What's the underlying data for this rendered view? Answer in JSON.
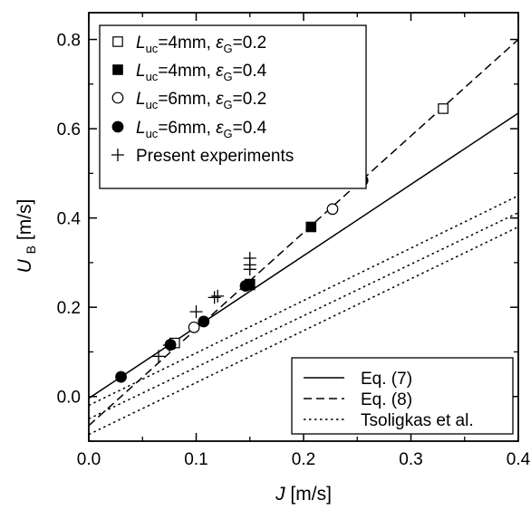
{
  "chart_data": {
    "type": "scatter",
    "x_axis": {
      "label": "J",
      "unit": "[m/s]",
      "lim": [
        0.0,
        0.4
      ],
      "ticks": [
        "0.0",
        "0.1",
        "0.2",
        "0.3",
        "0.4"
      ],
      "tick_values": [
        0.0,
        0.1,
        0.2,
        0.3,
        0.4
      ]
    },
    "y_axis": {
      "label": "U",
      "label_sub": "B",
      "unit": "[m/s]",
      "lim": [
        -0.1,
        0.86
      ],
      "ticks": [
        "0.0",
        "0.2",
        "0.4",
        "0.6",
        "0.8"
      ],
      "tick_values": [
        0.0,
        0.2,
        0.4,
        0.6,
        0.8
      ]
    },
    "grid": false,
    "series": [
      {
        "name": "L_uc=4mm, εG=0.2",
        "legend": {
          "l": "L",
          "l_sub": "uc",
          "mid": "=4mm, ",
          "eps": "ε",
          "eps_sub": "G",
          "tail": "=0.2"
        },
        "marker": "open-square",
        "points": [
          [
            0.08,
            0.12
          ],
          [
            0.15,
            0.25
          ],
          [
            0.33,
            0.645
          ]
        ]
      },
      {
        "name": "L_uc=4mm, εG=0.4",
        "legend": {
          "l": "L",
          "l_sub": "uc",
          "mid": "=4mm, ",
          "eps": "ε",
          "eps_sub": "G",
          "tail": "=0.4"
        },
        "marker": "filled-square",
        "points": [
          [
            0.15,
            0.252
          ],
          [
            0.207,
            0.38
          ]
        ]
      },
      {
        "name": "L_uc=6mm, εG=0.2",
        "legend": {
          "l": "L",
          "l_sub": "uc",
          "mid": "=6mm, ",
          "eps": "ε",
          "eps_sub": "G",
          "tail": "=0.2"
        },
        "marker": "open-circle",
        "points": [
          [
            0.098,
            0.155
          ],
          [
            0.227,
            0.42
          ]
        ]
      },
      {
        "name": "L_uc=6mm, εG=0.4",
        "legend": {
          "l": "L",
          "l_sub": "uc",
          "mid": "=6mm, ",
          "eps": "ε",
          "eps_sub": "G",
          "tail": "=0.4"
        },
        "marker": "filled-circle",
        "points": [
          [
            0.03,
            0.044
          ],
          [
            0.076,
            0.116
          ],
          [
            0.107,
            0.168
          ],
          [
            0.146,
            0.248
          ],
          [
            0.255,
            0.484
          ]
        ]
      },
      {
        "name": "Present experiments",
        "legend": {
          "plain": "Present experiments"
        },
        "marker": "plus",
        "points": [
          [
            0.065,
            0.09
          ],
          [
            0.075,
            0.115
          ],
          [
            0.1,
            0.19
          ],
          [
            0.117,
            0.222
          ],
          [
            0.12,
            0.225
          ],
          [
            0.15,
            0.285
          ],
          [
            0.15,
            0.31
          ],
          [
            0.15,
            0.295
          ]
        ]
      }
    ],
    "lines": [
      {
        "name": "Eq. (7)",
        "style": "solid",
        "segments": [
          [
            [
              0.0,
              -0.004
            ],
            [
              0.4,
              0.635
            ]
          ]
        ]
      },
      {
        "name": "Eq. (8)",
        "style": "dashed",
        "segments": [
          [
            [
              0.0,
              -0.065
            ],
            [
              0.4,
              0.8
            ]
          ]
        ]
      },
      {
        "name": "Tsoligkas et al.",
        "style": "dotted",
        "segments": [
          [
            [
              0.0,
              -0.02
            ],
            [
              0.4,
              0.45
            ]
          ],
          [
            [
              0.0,
              -0.05
            ],
            [
              0.4,
              0.412
            ]
          ],
          [
            [
              0.0,
              -0.085
            ],
            [
              0.4,
              0.38
            ]
          ]
        ]
      }
    ]
  }
}
